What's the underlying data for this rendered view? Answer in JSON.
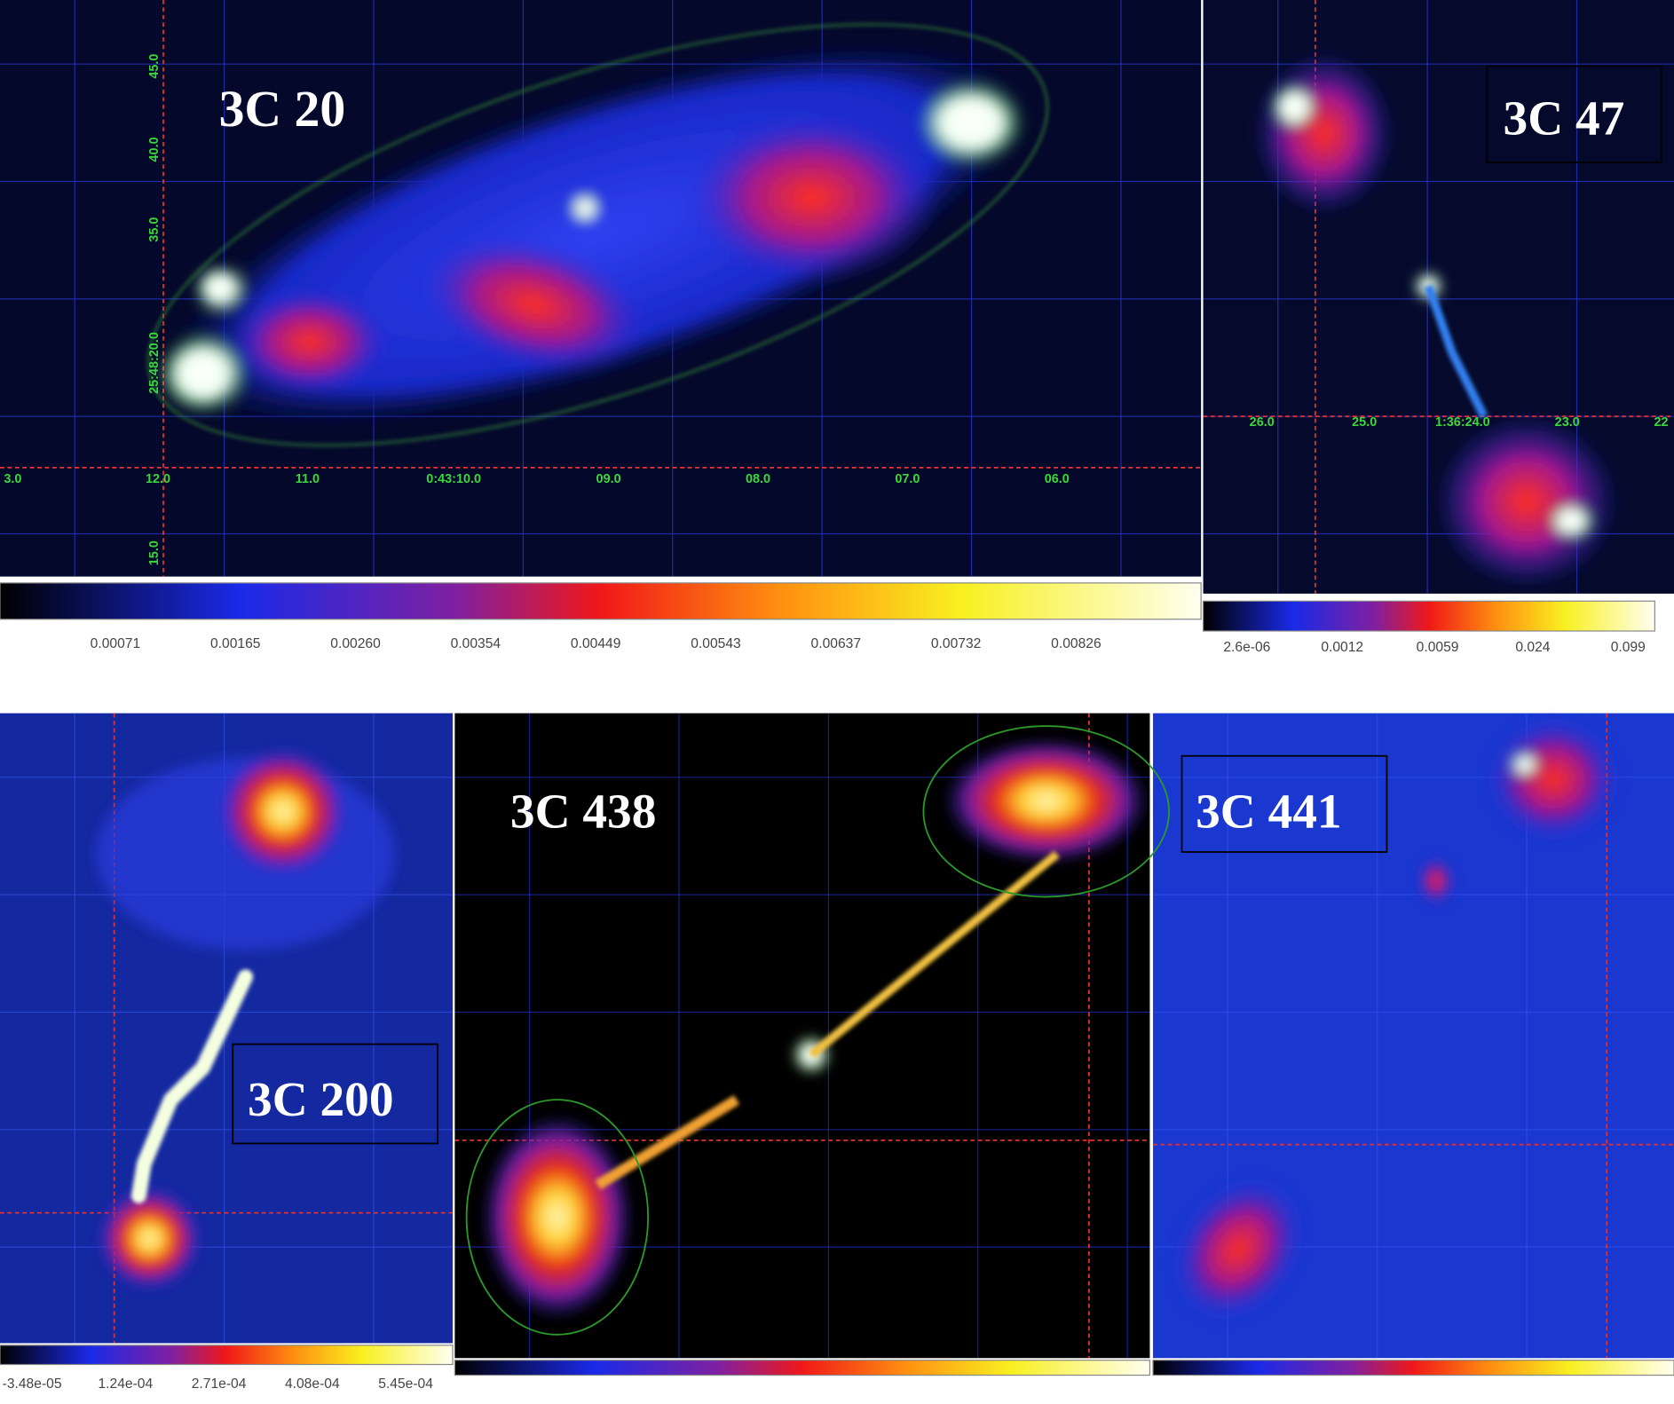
{
  "panels": [
    {
      "label": "3C 20",
      "colorbar_ticks": [
        "0.00071",
        "0.00165",
        "0.00260",
        "0.00354",
        "0.00449",
        "0.00543",
        "0.00637",
        "0.00732",
        "0.00826"
      ],
      "ra_ticks": [
        "3.0",
        "12.0",
        "11.0",
        "0:43:10.0",
        "09.0",
        "08.0",
        "07.0",
        "06.0"
      ],
      "dec_ticks": [
        "45.0",
        "40.0",
        "35.0",
        "25:48:20.0",
        "15.0"
      ]
    },
    {
      "label": "3C 47",
      "colorbar_ticks": [
        "2.6e-06",
        "0.0012",
        "0.0059",
        "0.024",
        "0.099"
      ],
      "ra_ticks": [
        "26.0",
        "25.0",
        "1:36:24.0",
        "23.0",
        "22"
      ]
    },
    {
      "label": "3C 200",
      "colorbar_ticks": [
        "-3.48e-05",
        "1.24e-04",
        "2.71e-04",
        "4.08e-04",
        "5.45e-04"
      ]
    },
    {
      "label": "3C 438"
    },
    {
      "label": "3C 441"
    }
  ]
}
